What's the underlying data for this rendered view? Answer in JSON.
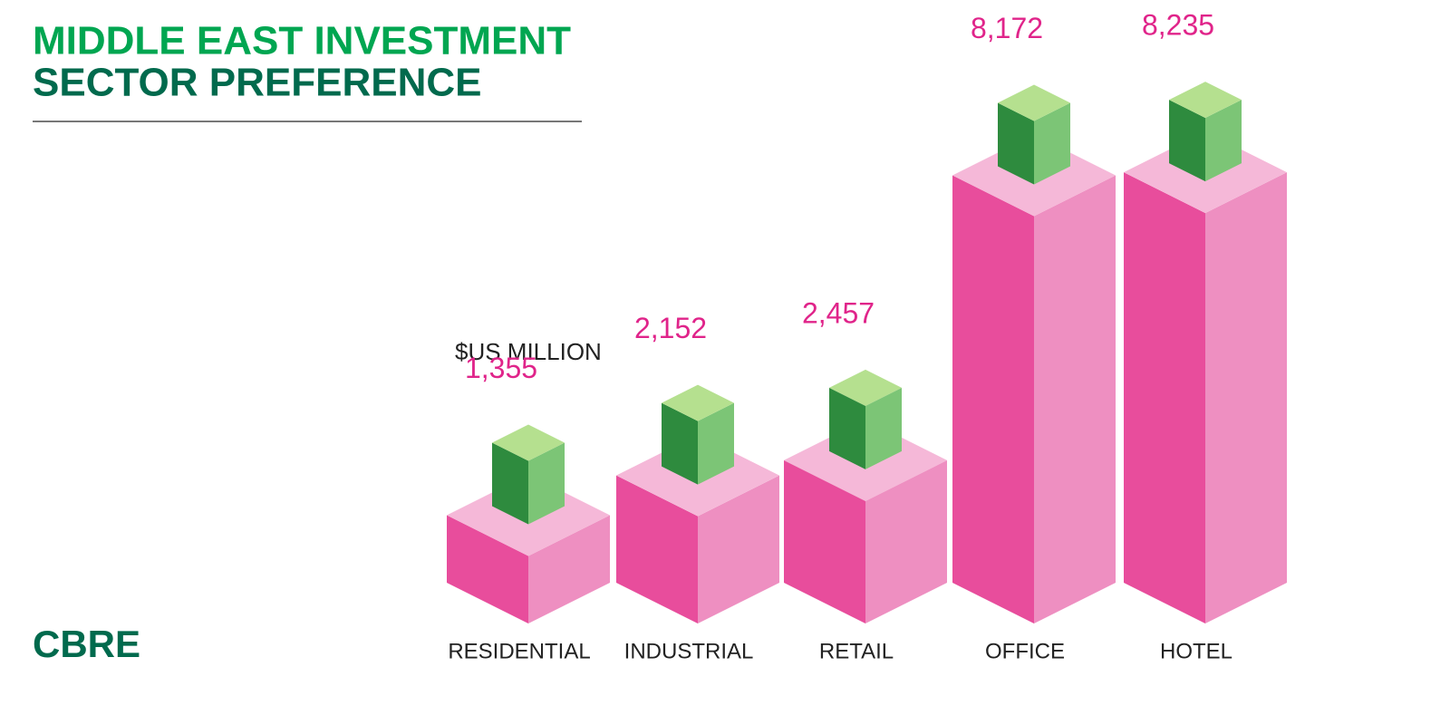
{
  "chart_data": {
    "type": "bar3d",
    "title": [
      "MIDDLE EAST INVESTMENT",
      "SECTOR PREFERENCE"
    ],
    "unit_label": "$US MILLION",
    "logo": "CBRE",
    "categories": [
      "RESIDENTIAL",
      "INDUSTRIAL",
      "RETAIL",
      "OFFICE",
      "HOTEL"
    ],
    "values": [
      1355,
      2152,
      2457,
      8172,
      8235
    ],
    "value_labels": [
      "1,355",
      "2,152",
      "2,457",
      "8,172",
      "8,235"
    ],
    "color": "#e84d9c"
  }
}
